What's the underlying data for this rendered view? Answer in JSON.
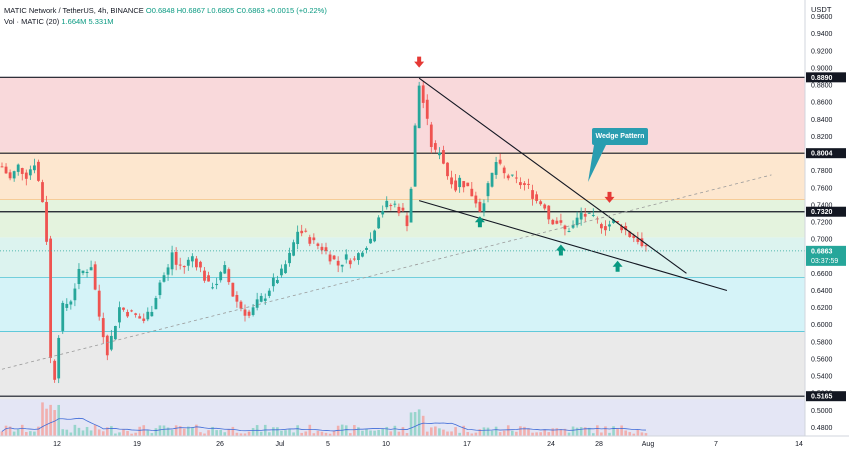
{
  "header": {
    "symbol_line": "MATIC Network / TetherUS, 4h, BINANCE",
    "ohlc": "O0.6848 H0.6867 L0.6805 C0.6863 +0.0015 (+0.22%)",
    "volume_line": "Vol · MATIC (20)",
    "volume_values": "1.664M 5.331M"
  },
  "price_scale": {
    "currency": "USDT",
    "last_price": "0.6863",
    "countdown": "03:37:59"
  },
  "levels": [
    {
      "value": "0.8890",
      "color": "#131722"
    },
    {
      "value": "0.8004",
      "color": "#131722"
    },
    {
      "value": "0.7320",
      "color": "#131722"
    },
    {
      "value": "0.5165",
      "color": "#131722"
    }
  ],
  "annotation": {
    "label": "Wedge Pattern"
  },
  "zones": [
    {
      "from": 0.802,
      "to": 0.889,
      "color": "#f9d9db"
    },
    {
      "from": 0.746,
      "to": 0.802,
      "color": "#fde7cf"
    },
    {
      "from": 0.702,
      "to": 0.746,
      "color": "#e4f3de"
    },
    {
      "from": 0.655,
      "to": 0.702,
      "color": "#dcf3ef"
    },
    {
      "from": 0.592,
      "to": 0.655,
      "color": "#d5f3f8"
    },
    {
      "from": 0.47,
      "to": 0.592,
      "color": "#eaeaea"
    }
  ],
  "colors": {
    "up": "#26a69a",
    "down": "#ef5350",
    "arrow_down": "#e53935",
    "arrow_up": "#089981",
    "callout": "#2a9db0"
  },
  "chart_data": {
    "type": "candlestick",
    "title": "MATIC Network / TetherUS, 4h, BINANCE",
    "ylim": [
      0.47,
      0.97
    ],
    "yticks": [
      "0.9600",
      "0.9400",
      "0.9200",
      "0.9000",
      "0.8800",
      "0.8600",
      "0.8400",
      "0.8200",
      "0.8000",
      "0.7800",
      "0.7600",
      "0.7400",
      "0.7200",
      "0.7000",
      "0.6800",
      "0.6600",
      "0.6400",
      "0.6200",
      "0.6000",
      "0.5800",
      "0.5600",
      "0.5400",
      "0.5200",
      "0.5000",
      "0.4800"
    ],
    "xticks": [
      "12",
      "19",
      "26",
      "Jul",
      "5",
      "10",
      "17",
      "24",
      "28",
      "Aug",
      "7",
      "14"
    ],
    "price_path": [
      [
        0,
        0.785
      ],
      [
        2,
        0.77
      ],
      [
        4,
        0.785
      ],
      [
        6,
        0.775
      ],
      [
        8,
        0.79
      ],
      [
        10,
        0.745
      ],
      [
        11,
        0.7
      ],
      [
        12,
        0.56
      ],
      [
        13,
        0.54
      ],
      [
        14,
        0.59
      ],
      [
        15,
        0.62
      ],
      [
        17,
        0.63
      ],
      [
        19,
        0.66
      ],
      [
        21,
        0.665
      ],
      [
        22,
        0.67
      ],
      [
        24,
        0.61
      ],
      [
        26,
        0.57
      ],
      [
        27,
        0.585
      ],
      [
        29,
        0.62
      ],
      [
        31,
        0.615
      ],
      [
        33,
        0.61
      ],
      [
        35,
        0.605
      ],
      [
        37,
        0.62
      ],
      [
        39,
        0.65
      ],
      [
        41,
        0.665
      ],
      [
        42,
        0.685
      ],
      [
        43,
        0.67
      ],
      [
        45,
        0.668
      ],
      [
        47,
        0.68
      ],
      [
        49,
        0.665
      ],
      [
        51,
        0.645
      ],
      [
        53,
        0.65
      ],
      [
        55,
        0.665
      ],
      [
        57,
        0.635
      ],
      [
        59,
        0.62
      ],
      [
        61,
        0.61
      ],
      [
        63,
        0.625
      ],
      [
        65,
        0.635
      ],
      [
        67,
        0.65
      ],
      [
        69,
        0.66
      ],
      [
        71,
        0.68
      ],
      [
        73,
        0.71
      ],
      [
        75,
        0.705
      ],
      [
        77,
        0.695
      ],
      [
        79,
        0.69
      ],
      [
        81,
        0.68
      ],
      [
        83,
        0.67
      ],
      [
        85,
        0.678
      ],
      [
        87,
        0.675
      ],
      [
        89,
        0.69
      ],
      [
        91,
        0.7
      ],
      [
        93,
        0.73
      ],
      [
        95,
        0.74
      ],
      [
        97,
        0.74
      ],
      [
        99,
        0.73
      ],
      [
        100,
        0.72
      ],
      [
        101,
        0.76
      ],
      [
        102,
        0.83
      ],
      [
        103,
        0.88
      ],
      [
        104,
        0.86
      ],
      [
        105,
        0.835
      ],
      [
        106,
        0.81
      ],
      [
        107,
        0.8
      ],
      [
        108,
        0.805
      ],
      [
        109,
        0.79
      ],
      [
        110,
        0.775
      ],
      [
        111,
        0.77
      ],
      [
        112,
        0.76
      ],
      [
        113,
        0.77
      ],
      [
        115,
        0.76
      ],
      [
        117,
        0.745
      ],
      [
        118,
        0.735
      ],
      [
        120,
        0.76
      ],
      [
        122,
        0.79
      ],
      [
        124,
        0.775
      ],
      [
        126,
        0.77
      ],
      [
        128,
        0.765
      ],
      [
        130,
        0.76
      ],
      [
        132,
        0.745
      ],
      [
        134,
        0.74
      ],
      [
        135,
        0.725
      ],
      [
        137,
        0.72
      ],
      [
        139,
        0.71
      ],
      [
        141,
        0.715
      ],
      [
        143,
        0.73
      ],
      [
        145,
        0.725
      ],
      [
        147,
        0.72
      ],
      [
        149,
        0.715
      ],
      [
        151,
        0.72
      ],
      [
        153,
        0.715
      ],
      [
        155,
        0.705
      ],
      [
        157,
        0.7
      ],
      [
        158,
        0.69
      ],
      [
        159,
        0.6863
      ]
    ],
    "volume_seed": 7,
    "trendlines": [
      {
        "name": "upper",
        "from": [
          103,
          0.888
        ],
        "to": [
          169,
          0.66
        ],
        "dashed": false
      },
      {
        "name": "lower",
        "from": [
          103,
          0.745
        ],
        "to": [
          179,
          0.64
        ],
        "dashed": false
      },
      {
        "name": "support",
        "from": [
          0,
          0.548
        ],
        "to": [
          190,
          0.775
        ],
        "dashed": true
      }
    ],
    "arrows": [
      {
        "x": 103,
        "y": 0.905,
        "dir": "down"
      },
      {
        "x": 150,
        "y": 0.747,
        "dir": "down"
      },
      {
        "x": 118,
        "y": 0.722,
        "dir": "up"
      },
      {
        "x": 138,
        "y": 0.689,
        "dir": "up"
      },
      {
        "x": 152,
        "y": 0.67,
        "dir": "up"
      }
    ]
  }
}
